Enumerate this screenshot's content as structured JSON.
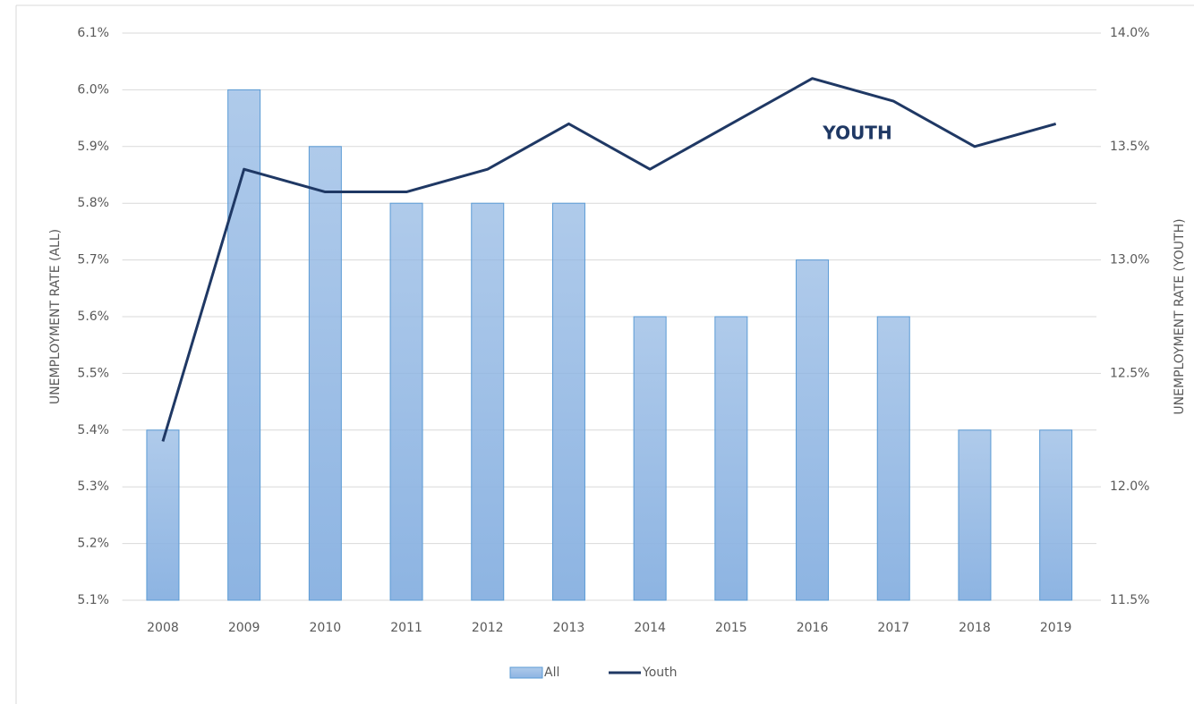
{
  "chart_data": {
    "type": "bar_line",
    "categories": [
      "2008",
      "2009",
      "2010",
      "2011",
      "2012",
      "2013",
      "2014",
      "2015",
      "2016",
      "2017",
      "2018",
      "2019"
    ],
    "series": [
      {
        "name": "All",
        "type": "bar",
        "color": "#8db4e2",
        "values": [
          5.4,
          6.0,
          5.9,
          5.8,
          5.8,
          5.8,
          5.6,
          5.6,
          5.7,
          5.6,
          5.4,
          5.4
        ]
      },
      {
        "name": "Youth",
        "type": "line",
        "axis": "y2",
        "color": "#1f3864",
        "values": [
          12.2,
          13.4,
          13.3,
          13.3,
          13.4,
          13.6,
          13.4,
          13.6,
          13.8,
          13.7,
          13.5,
          13.6
        ]
      }
    ],
    "ylabel": "UNEMPLOYMENT RATE (ALL)",
    "y2label": "UNEMPLOYMENT RATE (YOUTH)",
    "annotation": "YOUTH",
    "ylim": [
      5.1,
      6.1
    ],
    "yticks": [
      {
        "value": 5.1,
        "label": "5.1%"
      },
      {
        "value": 5.2,
        "label": "5.2%"
      },
      {
        "value": 5.3,
        "label": "5.3%"
      },
      {
        "value": 5.4,
        "label": "5.4%"
      },
      {
        "value": 5.5,
        "label": "5.5%"
      },
      {
        "value": 5.6,
        "label": "5.6%"
      },
      {
        "value": 5.7,
        "label": "5.7%"
      },
      {
        "value": 5.8,
        "label": "5.8%"
      },
      {
        "value": 5.9,
        "label": "5.9%"
      },
      {
        "value": 6.0,
        "label": "6.0%"
      },
      {
        "value": 6.1,
        "label": "6.1%"
      }
    ],
    "y2lim": [
      11.5,
      14.0
    ],
    "y2ticks": [
      {
        "value": 11.5,
        "label": "11.5%"
      },
      {
        "value": 12.0,
        "label": "12.0%"
      },
      {
        "value": 12.5,
        "label": "12.5%"
      },
      {
        "value": 13.0,
        "label": "13.0%"
      },
      {
        "value": 13.5,
        "label": "13.5%"
      },
      {
        "value": 14.0,
        "label": "14.0%"
      }
    ],
    "grid": true,
    "legend": "bottom"
  }
}
